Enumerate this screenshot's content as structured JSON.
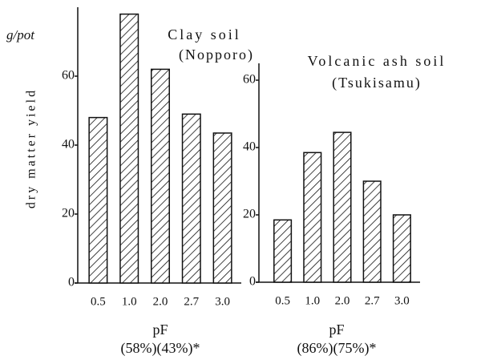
{
  "chart_data": [
    {
      "type": "bar",
      "title": "Clay soil",
      "subtitle": "(Nopporo)",
      "ylabel": "dry matter yield",
      "y_unit": "g/pot",
      "xlabel": "pF",
      "x_note": "(58%)(43%)*",
      "categories": [
        "0.5",
        "1.0",
        "2.0",
        "2.7",
        "3.0"
      ],
      "values": [
        48,
        78,
        62,
        49,
        43.5
      ],
      "ylim": [
        0,
        80
      ],
      "yticks": [
        0,
        20,
        40,
        60
      ],
      "color": "#ffffff"
    },
    {
      "type": "bar",
      "title": "Volcanic ash soil",
      "subtitle": "(Tsukisamu)",
      "xlabel": "pF",
      "x_note": "(86%)(75%)*",
      "categories": [
        "0.5",
        "1.0",
        "2.0",
        "2.7",
        "3.0"
      ],
      "values": [
        18.5,
        38.5,
        44.5,
        30,
        20
      ],
      "ylim": [
        0,
        65
      ],
      "yticks": [
        0,
        20,
        40,
        60
      ],
      "color": "#ffffff"
    }
  ]
}
